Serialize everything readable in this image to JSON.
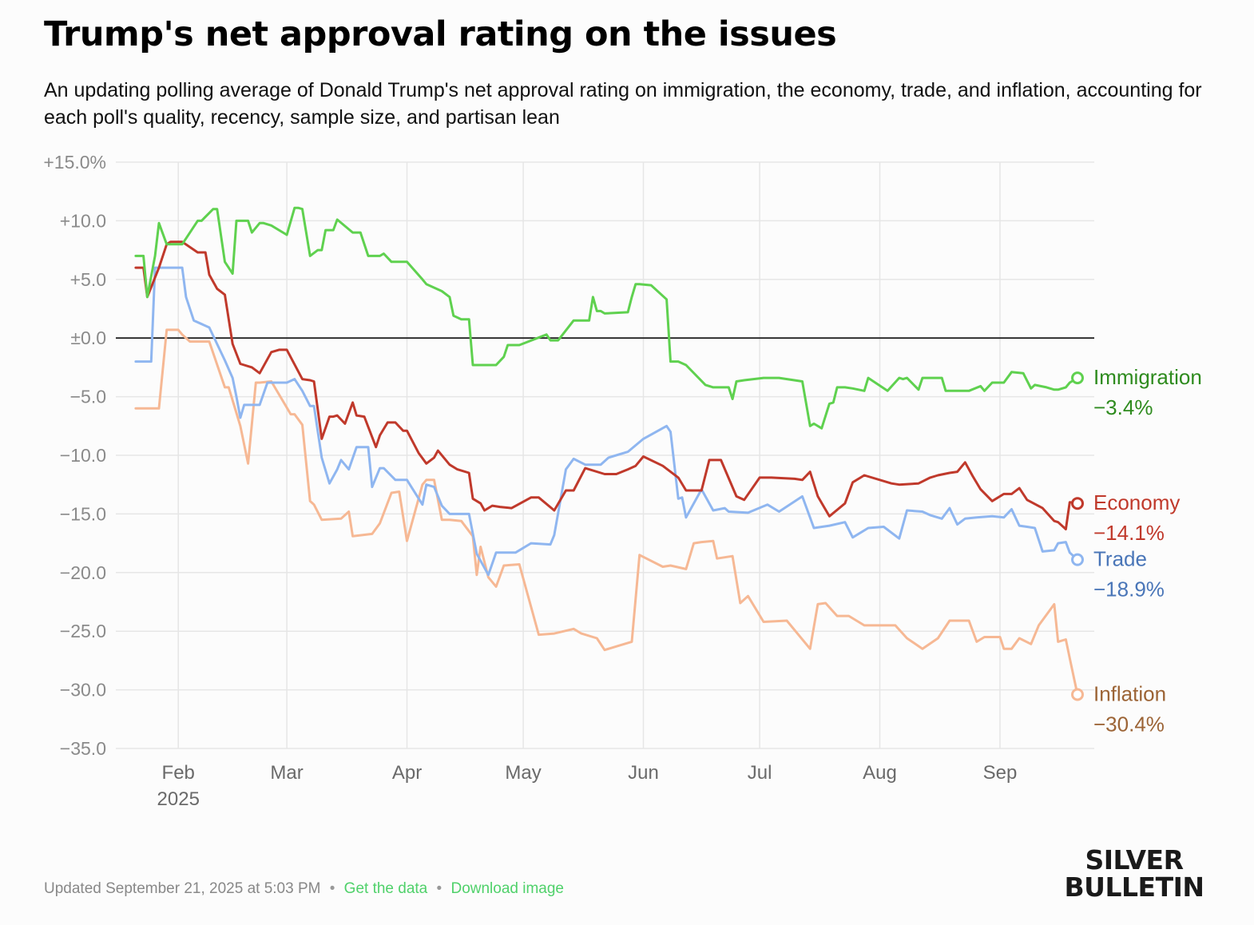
{
  "title": "Trump's net approval rating on the issues",
  "subtitle": "An updating polling average of Donald Trump's net approval rating on immigration, the economy, trade, and inflation, accounting for each poll's quality, recency, sample size, and partisan lean",
  "footer": {
    "updated": "Updated September 21, 2025 at 5:03 PM",
    "separator": "•",
    "get_data": "Get the data",
    "download_image": "Download image"
  },
  "logo": {
    "line1": "SILVER",
    "line2": "BULLETIN"
  },
  "chart_data": {
    "type": "line",
    "ylim": [
      -35,
      15
    ],
    "yticks": [
      15,
      10,
      5,
      0,
      -5,
      -10,
      -15,
      -20,
      -25,
      -30,
      -35
    ],
    "ytick_labels": [
      "+15.0%",
      "+10.0",
      "+5.0",
      "±0.0",
      "−5.0",
      "−10.0",
      "−15.0",
      "−20.0",
      "−25.0",
      "−30.0",
      "−35.0"
    ],
    "xlim": [
      "2025-01-20",
      "2025-09-21"
    ],
    "xticks": [
      "2025-02-01",
      "2025-03-01",
      "2025-04-01",
      "2025-05-01",
      "2025-06-01",
      "2025-07-01",
      "2025-08-01",
      "2025-09-01"
    ],
    "xtick_labels": [
      "Feb",
      "Mar",
      "Apr",
      "May",
      "Jun",
      "Jul",
      "Aug",
      "Sep"
    ],
    "xtick_sublabel": "2025",
    "grid": true,
    "zero_line": true,
    "series": [
      {
        "name": "Immigration",
        "label": "−3.4%",
        "color": "#5fd14f",
        "label_color": "#2e8b1e",
        "x": [
          "2025-01-21",
          "2025-01-23",
          "2025-01-24",
          "2025-01-26",
          "2025-01-27",
          "2025-01-29",
          "2025-01-30",
          "2025-02-02",
          "2025-02-06",
          "2025-02-07",
          "2025-02-10",
          "2025-02-11",
          "2025-02-13",
          "2025-02-15",
          "2025-02-16",
          "2025-02-19",
          "2025-02-20",
          "2025-02-22",
          "2025-02-23",
          "2025-02-25",
          "2025-03-01",
          "2025-03-03",
          "2025-03-04",
          "2025-03-05",
          "2025-03-07",
          "2025-03-09",
          "2025-03-10",
          "2025-03-11",
          "2025-03-13",
          "2025-03-14",
          "2025-03-18",
          "2025-03-20",
          "2025-03-22",
          "2025-03-25",
          "2025-03-26",
          "2025-03-28",
          "2025-04-01",
          "2025-04-05",
          "2025-04-06",
          "2025-04-10",
          "2025-04-12",
          "2025-04-13",
          "2025-04-15",
          "2025-04-17",
          "2025-04-18",
          "2025-04-24",
          "2025-04-26",
          "2025-04-27",
          "2025-04-30",
          "2025-05-07",
          "2025-05-08",
          "2025-05-10",
          "2025-05-14",
          "2025-05-18",
          "2025-05-19",
          "2025-05-20",
          "2025-05-21",
          "2025-05-22",
          "2025-05-28",
          "2025-05-29",
          "2025-05-30",
          "2025-05-31",
          "2025-06-03",
          "2025-06-07",
          "2025-06-08",
          "2025-06-10",
          "2025-06-12",
          "2025-06-17",
          "2025-06-19",
          "2025-06-23",
          "2025-06-24",
          "2025-06-25",
          "2025-06-27",
          "2025-07-02",
          "2025-07-06",
          "2025-07-12",
          "2025-07-14",
          "2025-07-15",
          "2025-07-17",
          "2025-07-19",
          "2025-07-20",
          "2025-07-21",
          "2025-07-23",
          "2025-07-25",
          "2025-07-28",
          "2025-07-29",
          "2025-08-03",
          "2025-08-06",
          "2025-08-07",
          "2025-08-08",
          "2025-08-11",
          "2025-08-12",
          "2025-08-17",
          "2025-08-18",
          "2025-08-24",
          "2025-08-27",
          "2025-08-28",
          "2025-08-30",
          "2025-09-01",
          "2025-09-02",
          "2025-09-04",
          "2025-09-07",
          "2025-09-09",
          "2025-09-10",
          "2025-09-13",
          "2025-09-15",
          "2025-09-16",
          "2025-09-18",
          "2025-09-19",
          "2025-09-21"
        ],
        "y": [
          7,
          7,
          3.5,
          7,
          9.8,
          8,
          8,
          8,
          10,
          10,
          11,
          11,
          6.5,
          5.5,
          10,
          10,
          9,
          9.8,
          9.8,
          9.6,
          8.8,
          11.1,
          11.1,
          11,
          7,
          7.5,
          7.5,
          9.2,
          9.2,
          10.1,
          9,
          9,
          7,
          7,
          7.2,
          6.5,
          6.5,
          5,
          4.6,
          4,
          3.5,
          1.9,
          1.6,
          1.6,
          -2.3,
          -2.3,
          -1.6,
          -0.6,
          -0.6,
          0.3,
          -0.2,
          -0.2,
          1.5,
          1.5,
          3.5,
          2.3,
          2.3,
          2.1,
          2.2,
          3.5,
          4.6,
          4.6,
          4.5,
          3.3,
          -2,
          -2,
          -2.3,
          -4,
          -4.2,
          -4.2,
          -5.2,
          -3.7,
          -3.6,
          -3.4,
          -3.4,
          -3.7,
          -7.5,
          -7.3,
          -7.7,
          -5.6,
          -5.5,
          -4.2,
          -4.2,
          -4.3,
          -4.5,
          -3.4,
          -4.5,
          -3.4,
          -3.5,
          -3.4,
          -4.4,
          -3.4,
          -3.4,
          -4.5,
          -4.5,
          -4.1,
          -4.5,
          -3.8,
          -3.8,
          -3.8,
          -2.9,
          -3,
          -4.3,
          -4,
          -4.2,
          -4.4,
          -4.4,
          -4.2,
          -3.8,
          -3.4
        ]
      },
      {
        "name": "Economy",
        "label": "−14.1%",
        "color": "#c0392b",
        "label_color": "#c0392b",
        "x": [
          "2025-01-21",
          "2025-01-23",
          "2025-01-24",
          "2025-01-27",
          "2025-01-29",
          "2025-01-30",
          "2025-02-02",
          "2025-02-06",
          "2025-02-08",
          "2025-02-09",
          "2025-02-11",
          "2025-02-13",
          "2025-02-15",
          "2025-02-17",
          "2025-02-20",
          "2025-02-22",
          "2025-02-25",
          "2025-02-27",
          "2025-03-01",
          "2025-03-05",
          "2025-03-07",
          "2025-03-08",
          "2025-03-10",
          "2025-03-12",
          "2025-03-13",
          "2025-03-14",
          "2025-03-16",
          "2025-03-18",
          "2025-03-19",
          "2025-03-21",
          "2025-03-24",
          "2025-03-25",
          "2025-03-27",
          "2025-03-29",
          "2025-03-31",
          "2025-04-01",
          "2025-04-04",
          "2025-04-06",
          "2025-04-08",
          "2025-04-09",
          "2025-04-12",
          "2025-04-14",
          "2025-04-17",
          "2025-04-18",
          "2025-04-20",
          "2025-04-21",
          "2025-04-23",
          "2025-04-25",
          "2025-04-28",
          "2025-05-03",
          "2025-05-05",
          "2025-05-09",
          "2025-05-12",
          "2025-05-14",
          "2025-05-17",
          "2025-05-22",
          "2025-05-25",
          "2025-05-28",
          "2025-05-30",
          "2025-06-01",
          "2025-06-06",
          "2025-06-10",
          "2025-06-12",
          "2025-06-16",
          "2025-06-18",
          "2025-06-21",
          "2025-06-25",
          "2025-06-27",
          "2025-07-01",
          "2025-07-04",
          "2025-07-10",
          "2025-07-12",
          "2025-07-14",
          "2025-07-16",
          "2025-07-19",
          "2025-07-23",
          "2025-07-25",
          "2025-07-28",
          "2025-08-04",
          "2025-08-06",
          "2025-08-11",
          "2025-08-14",
          "2025-08-16",
          "2025-08-19",
          "2025-08-21",
          "2025-08-23",
          "2025-08-25",
          "2025-08-27",
          "2025-08-30",
          "2025-09-02",
          "2025-09-04",
          "2025-09-06",
          "2025-09-08",
          "2025-09-12",
          "2025-09-15",
          "2025-09-16",
          "2025-09-18",
          "2025-09-19",
          "2025-09-21"
        ],
        "y": [
          6,
          6,
          3.5,
          6,
          8,
          8.2,
          8.2,
          7.3,
          7.3,
          5.4,
          4.2,
          3.7,
          -0.5,
          -2.2,
          -2.5,
          -3,
          -1.2,
          -1,
          -1,
          -3.5,
          -3.6,
          -3.7,
          -8.6,
          -6.7,
          -6.7,
          -6.6,
          -7.3,
          -5.5,
          -6.6,
          -6.7,
          -9.3,
          -8.3,
          -7.2,
          -7.2,
          -7.9,
          -7.9,
          -9.8,
          -10.7,
          -10.2,
          -9.6,
          -10.8,
          -11.2,
          -11.5,
          -13.7,
          -14.1,
          -14.7,
          -14.3,
          -14.4,
          -14.5,
          -13.6,
          -13.6,
          -14.7,
          -13,
          -13,
          -11.1,
          -11.6,
          -11.6,
          -11.2,
          -10.9,
          -10.1,
          -10.9,
          -11.9,
          -13,
          -13,
          -10.4,
          -10.4,
          -13.5,
          -13.8,
          -11.9,
          -11.9,
          -12,
          -12.1,
          -11.4,
          -13.5,
          -15.2,
          -14.1,
          -12.3,
          -11.7,
          -12.4,
          -12.5,
          -12.4,
          -11.9,
          -11.7,
          -11.5,
          -11.4,
          -10.6,
          -11.8,
          -12.9,
          -13.9,
          -13.3,
          -13.3,
          -12.8,
          -13.8,
          -14.5,
          -15.6,
          -15.7,
          -16.3,
          -14,
          -14.1
        ]
      },
      {
        "name": "Trade",
        "label": "−18.9%",
        "color": "#8fb6f0",
        "label_color": "#4a76b8",
        "x": [
          "2025-01-21",
          "2025-01-25",
          "2025-01-26",
          "2025-01-28",
          "2025-02-02",
          "2025-02-03",
          "2025-02-05",
          "2025-02-09",
          "2025-02-13",
          "2025-02-15",
          "2025-02-16",
          "2025-02-17",
          "2025-02-18",
          "2025-02-22",
          "2025-02-24",
          "2025-03-01",
          "2025-03-03",
          "2025-03-05",
          "2025-03-07",
          "2025-03-08",
          "2025-03-10",
          "2025-03-12",
          "2025-03-14",
          "2025-03-15",
          "2025-03-17",
          "2025-03-19",
          "2025-03-22",
          "2025-03-23",
          "2025-03-25",
          "2025-03-26",
          "2025-03-29",
          "2025-04-01",
          "2025-04-05",
          "2025-04-06",
          "2025-04-08",
          "2025-04-10",
          "2025-04-12",
          "2025-04-17",
          "2025-04-19",
          "2025-04-22",
          "2025-04-24",
          "2025-04-26",
          "2025-04-29",
          "2025-05-03",
          "2025-05-08",
          "2025-05-09",
          "2025-05-12",
          "2025-05-14",
          "2025-05-17",
          "2025-05-18",
          "2025-05-21",
          "2025-05-23",
          "2025-05-28",
          "2025-06-01",
          "2025-06-07",
          "2025-06-08",
          "2025-06-10",
          "2025-06-11",
          "2025-06-12",
          "2025-06-16",
          "2025-06-19",
          "2025-06-22",
          "2025-06-23",
          "2025-06-28",
          "2025-07-03",
          "2025-07-06",
          "2025-07-12",
          "2025-07-15",
          "2025-07-19",
          "2025-07-23",
          "2025-07-25",
          "2025-07-29",
          "2025-08-02",
          "2025-08-06",
          "2025-08-08",
          "2025-08-12",
          "2025-08-14",
          "2025-08-17",
          "2025-08-19",
          "2025-08-21",
          "2025-08-23",
          "2025-08-26",
          "2025-08-30",
          "2025-09-02",
          "2025-09-04",
          "2025-09-06",
          "2025-09-08",
          "2025-09-10",
          "2025-09-12",
          "2025-09-15",
          "2025-09-16",
          "2025-09-18",
          "2025-09-19",
          "2025-09-21"
        ],
        "y": [
          -2,
          -2,
          6,
          6,
          6,
          3.5,
          1.5,
          0.9,
          -1.9,
          -3.4,
          -5,
          -6.8,
          -5.7,
          -5.7,
          -3.8,
          -3.8,
          -3.5,
          -4.5,
          -5.8,
          -5.8,
          -10.2,
          -12.4,
          -11.2,
          -10.4,
          -11.2,
          -9.3,
          -9.3,
          -12.7,
          -11.1,
          -11.1,
          -12.1,
          -12.1,
          -14.2,
          -12.5,
          -12.7,
          -14.3,
          -15,
          -15,
          -18.4,
          -20.2,
          -18.3,
          -18.3,
          -18.3,
          -17.5,
          -17.6,
          -16.8,
          -11.2,
          -10.3,
          -10.8,
          -10.8,
          -10.8,
          -10.2,
          -9.7,
          -8.6,
          -7.5,
          -8,
          -13.7,
          -13.6,
          -15.3,
          -12.9,
          -14.7,
          -14.5,
          -14.8,
          -14.9,
          -14.2,
          -14.8,
          -13.5,
          -16.2,
          -16,
          -15.7,
          -17,
          -16.2,
          -16.1,
          -17.1,
          -14.7,
          -14.8,
          -15.1,
          -15.4,
          -14.5,
          -15.9,
          -15.4,
          -15.3,
          -15.2,
          -15.3,
          -14.6,
          -16,
          -16.1,
          -16.2,
          -18.2,
          -18.1,
          -17.5,
          -17.4,
          -18.3,
          -18.9
        ]
      },
      {
        "name": "Inflation",
        "label": "−30.4%",
        "color": "#f6b894",
        "label_color": "#9c6436",
        "x": [
          "2025-01-21",
          "2025-01-27",
          "2025-01-29",
          "2025-02-01",
          "2025-02-02",
          "2025-02-04",
          "2025-02-07",
          "2025-02-09",
          "2025-02-13",
          "2025-02-14",
          "2025-02-17",
          "2025-02-19",
          "2025-02-21",
          "2025-02-22",
          "2025-02-25",
          "2025-03-02",
          "2025-03-03",
          "2025-03-05",
          "2025-03-07",
          "2025-03-08",
          "2025-03-10",
          "2025-03-15",
          "2025-03-17",
          "2025-03-18",
          "2025-03-23",
          "2025-03-25",
          "2025-03-28",
          "2025-03-30",
          "2025-04-01",
          "2025-04-05",
          "2025-04-06",
          "2025-04-08",
          "2025-04-10",
          "2025-04-12",
          "2025-04-15",
          "2025-04-18",
          "2025-04-19",
          "2025-04-20",
          "2025-04-22",
          "2025-04-24",
          "2025-04-26",
          "2025-04-30",
          "2025-05-05",
          "2025-05-09",
          "2025-05-14",
          "2025-05-16",
          "2025-05-20",
          "2025-05-22",
          "2025-05-26",
          "2025-05-29",
          "2025-05-31",
          "2025-06-06",
          "2025-06-08",
          "2025-06-12",
          "2025-06-14",
          "2025-06-16",
          "2025-06-19",
          "2025-06-20",
          "2025-06-24",
          "2025-06-26",
          "2025-06-28",
          "2025-07-02",
          "2025-07-08",
          "2025-07-14",
          "2025-07-16",
          "2025-07-18",
          "2025-07-21",
          "2025-07-24",
          "2025-07-28",
          "2025-08-05",
          "2025-08-08",
          "2025-08-12",
          "2025-08-16",
          "2025-08-19",
          "2025-08-21",
          "2025-08-24",
          "2025-08-26",
          "2025-08-28",
          "2025-09-01",
          "2025-09-02",
          "2025-09-04",
          "2025-09-06",
          "2025-09-09",
          "2025-09-11",
          "2025-09-15",
          "2025-09-16",
          "2025-09-18",
          "2025-09-19",
          "2025-09-21"
        ],
        "y": [
          -6,
          -6,
          0.7,
          0.7,
          0.3,
          -0.3,
          -0.3,
          -0.3,
          -4.2,
          -4.2,
          -7.5,
          -10.7,
          -3.8,
          -3.8,
          -3.7,
          -6.5,
          -6.5,
          -7.4,
          -13.9,
          -14.2,
          -15.5,
          -15.4,
          -14.8,
          -16.9,
          -16.7,
          -15.8,
          -13.2,
          -13.1,
          -17.3,
          -12.5,
          -12.1,
          -12.1,
          -15.5,
          -15.5,
          -15.6,
          -16.9,
          -20.2,
          -17.8,
          -20.4,
          -21.2,
          -19.4,
          -19.3,
          -25.3,
          -25.2,
          -24.8,
          -25.2,
          -25.6,
          -26.6,
          -26.2,
          -25.9,
          -18.5,
          -19.5,
          -19.4,
          -19.7,
          -17.5,
          -17.4,
          -17.3,
          -18.8,
          -18.6,
          -22.6,
          -22,
          -24.2,
          -24.1,
          -26.5,
          -22.7,
          -22.6,
          -23.7,
          -23.7,
          -24.5,
          -24.5,
          -25.6,
          -26.5,
          -25.6,
          -24.1,
          -24.1,
          -24.1,
          -25.9,
          -25.5,
          -25.5,
          -26.5,
          -26.5,
          -25.6,
          -26.1,
          -24.5,
          -22.7,
          -25.9,
          -25.7,
          -27.3,
          -30.4
        ]
      }
    ]
  }
}
